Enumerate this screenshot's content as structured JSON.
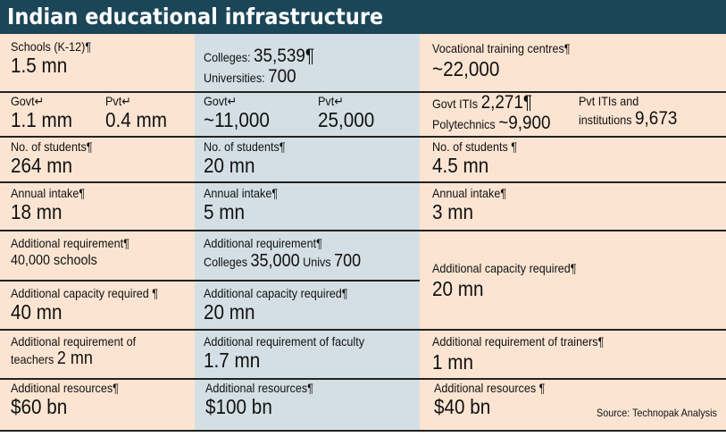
{
  "title": "Indian educational infrastructure",
  "schools": {
    "label": "Schools (K-12)¶",
    "value": "1.5 mn",
    "govt_label": "Govt↵",
    "govt_value": "1.1 mm",
    "pvt_label": "Pvt↵",
    "pvt_value": "0.4 mm",
    "students_label": "No. of students¶",
    "students_value": "264 mn",
    "intake_label": "Annual intake¶",
    "intake_value": "18 mn",
    "req_label": "Additional requirement¶",
    "req_value": "40,000 schools",
    "cap_label": "Additional capacity required ¶",
    "cap_value": "40 mn",
    "teachers_label": "Additional requirement of",
    "teachers_label2": "teachers",
    "teachers_value": "2 mn",
    "res_label": "Additional resources¶",
    "res_value": "$60 bn"
  },
  "colleges": {
    "colleges_label": "Colleges:",
    "colleges_value": "35,539¶",
    "univ_label": "Universities:",
    "univ_value": "700",
    "govt_label": "Govt↵",
    "govt_value": "~11,000",
    "pvt_label": "Pvt↵",
    "pvt_value": "25,000",
    "students_label": "No. of students¶",
    "students_value": "20 mn",
    "intake_label": "Annual intake¶",
    "intake_value": "5 mn",
    "req_label": "Additional requirement¶",
    "req_colleges_label": "Colleges",
    "req_colleges_value": "35,000",
    "req_univs_label": "Univs",
    "req_univs_value": "700",
    "cap_label": "Additional capacity required¶",
    "cap_value": "20 mn",
    "faculty_label": "Additional requirement of faculty",
    "faculty_value": "1.7 mn",
    "res_label": "Additional resources¶",
    "res_value": "$100 bn"
  },
  "vocational": {
    "label": "Vocational training centres¶",
    "value": "~22,000",
    "govt_itis_label": "Govt ITIs",
    "govt_itis_value": "2,271¶",
    "poly_label": "Polytechnics",
    "poly_value": "~9,900",
    "pvt_label": "Pvt ITIs and",
    "pvt_label2": "institutions",
    "pvt_value": "9,673",
    "students_label": "No. of students ¶",
    "students_value": "4.5 mn",
    "intake_label": "Annual intake¶",
    "intake_value": "3 mn",
    "cap_label": "Additional capacity required¶",
    "cap_value": "20 mn",
    "trainers_label": "Additional requirement of trainers¶",
    "trainers_value": "1 mn",
    "res_label": "Additional resources ¶",
    "res_value": "$40 bn"
  },
  "source": "Source: Technopak Analysis"
}
